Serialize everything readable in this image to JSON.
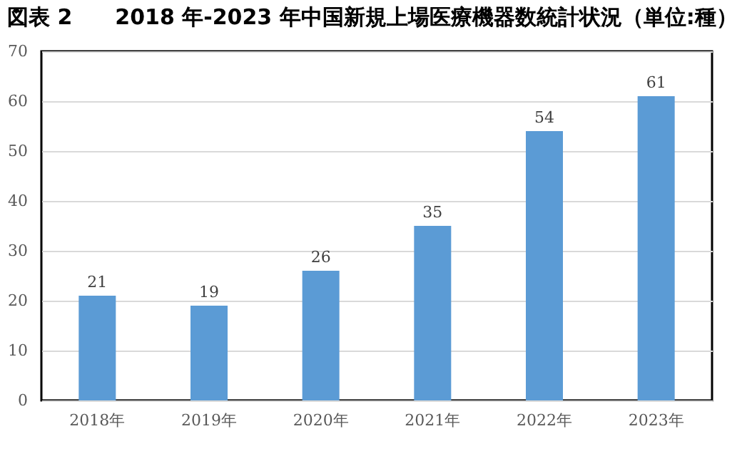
{
  "chart_data": {
    "type": "bar",
    "title": "図表 2　　2018 年-2023 年中国新規上場医療機器数統計状況（単位:種）",
    "categories": [
      "2018年",
      "2019年",
      "2020年",
      "2021年",
      "2022年",
      "2023年"
    ],
    "values": [
      21,
      19,
      26,
      35,
      54,
      61
    ],
    "color": "#5b9bd5",
    "ylim": [
      0,
      70
    ],
    "yticks": [
      0,
      10,
      20,
      30,
      40,
      50,
      60,
      70
    ],
    "grid": "y",
    "data_labels": true
  }
}
